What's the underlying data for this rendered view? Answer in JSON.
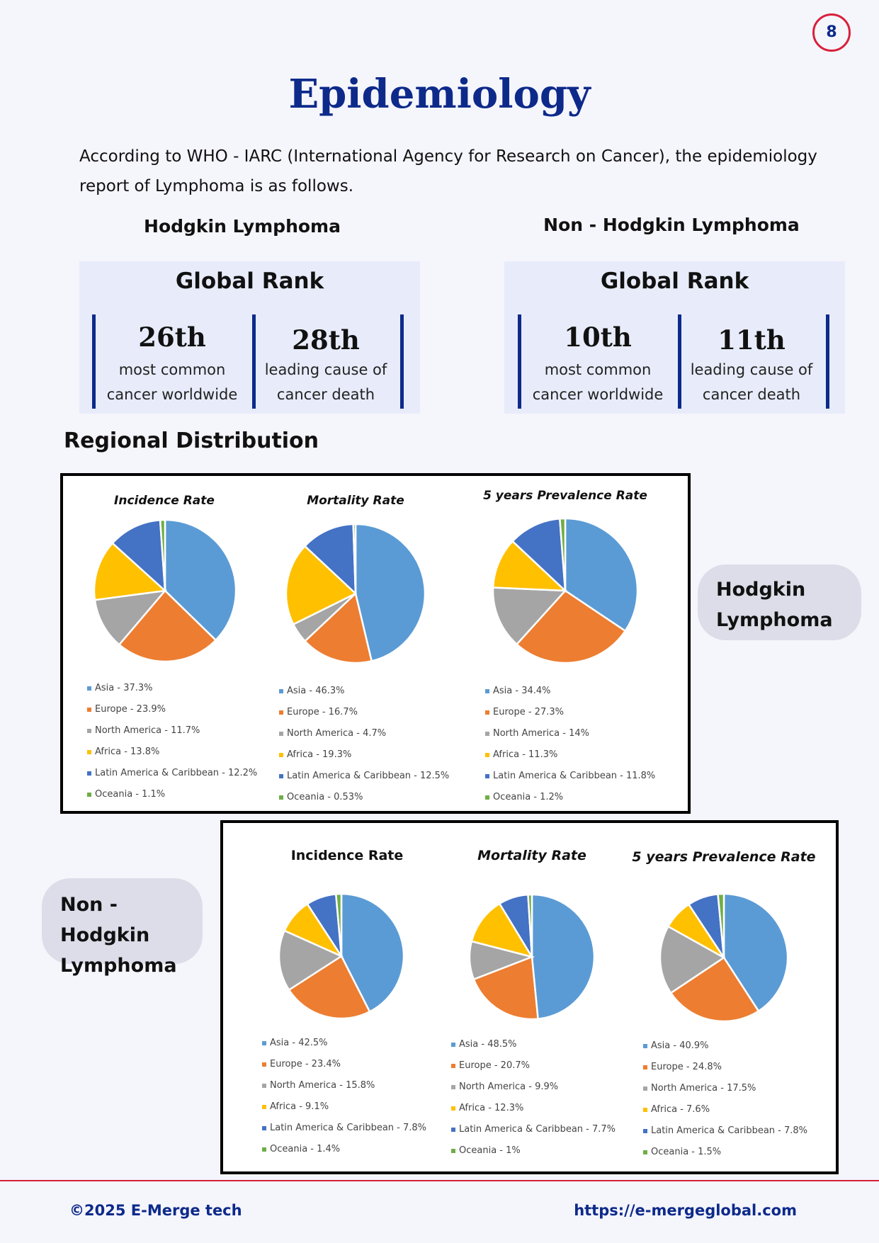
{
  "page_number": "8",
  "title": "Epidemiology",
  "intro": "According to WHO - IARC (International Agency for Research on Cancer),  the epidemiology report of Lymphoma is as follows.",
  "hodgkin": {
    "heading": "Hodgkin Lymphoma",
    "rank_title": "Global Rank",
    "incidence_rank": "26th",
    "incidence_l1": "most common",
    "incidence_l2": "cancer worldwide",
    "death_rank": "28th",
    "death_l1": "leading cause of",
    "death_l2": "cancer death",
    "pill": "Hodgkin Lymphoma"
  },
  "nhl": {
    "heading": "Non - Hodgkin Lymphoma",
    "rank_title": "Global Rank",
    "incidence_rank": "10th",
    "incidence_l1": "most common",
    "incidence_l2": "cancer worldwide",
    "death_rank": "11th",
    "death_l1": "leading cause of",
    "death_l2": "cancer death",
    "pill": "Non - Hodgkin Lymphoma"
  },
  "regional_heading": "Regional Distribution",
  "colors": {
    "Asia": "#5b9bd5",
    "Europe": "#ed7d31",
    "North America": "#a5a5a5",
    "Africa": "#ffc000",
    "Latin America & Caribbean": "#4472c4",
    "Oceania": "#70ad47",
    "accent": "#0d2a8a",
    "rule": "#d8203a"
  },
  "chart_data": [
    {
      "type": "pie",
      "group": "Hodgkin Lymphoma",
      "title": "Incidence Rate",
      "categories": [
        "Asia",
        "Europe",
        "North America",
        "Africa",
        "Latin America & Caribbean",
        "Oceania"
      ],
      "values": [
        37.3,
        23.9,
        11.7,
        13.8,
        12.2,
        1.1
      ],
      "legend": [
        "Asia - 37.3%",
        "Europe - 23.9%",
        "North America - 11.7%",
        "Africa - 13.8%",
        "Latin America & Caribbean - 12.2%",
        "Oceania - 1.1%"
      ]
    },
    {
      "type": "pie",
      "group": "Hodgkin Lymphoma",
      "title": "Mortality Rate",
      "categories": [
        "Asia",
        "Europe",
        "North America",
        "Africa",
        "Latin America & Caribbean",
        "Oceania"
      ],
      "values": [
        46.3,
        16.7,
        4.7,
        19.3,
        12.5,
        0.53
      ],
      "legend": [
        "Asia - 46.3%",
        "Europe - 16.7%",
        "North America - 4.7%",
        "Africa - 19.3%",
        "Latin America & Caribbean - 12.5%",
        "Oceania - 0.53%"
      ]
    },
    {
      "type": "pie",
      "group": "Hodgkin Lymphoma",
      "title": "5 years Prevalence Rate",
      "categories": [
        "Asia",
        "Europe",
        "North America",
        "Africa",
        "Latin America & Caribbean",
        "Oceania"
      ],
      "values": [
        34.4,
        27.3,
        14,
        11.3,
        11.8,
        1.2
      ],
      "legend": [
        "Asia - 34.4%",
        "Europe - 27.3%",
        "North America - 14%",
        "Africa - 11.3%",
        "Latin America & Caribbean - 11.8%",
        "Oceania - 1.2%"
      ]
    },
    {
      "type": "pie",
      "group": "Non - Hodgkin Lymphoma",
      "title": "Incidence Rate",
      "categories": [
        "Asia",
        "Europe",
        "North America",
        "Africa",
        "Latin America & Caribbean",
        "Oceania"
      ],
      "values": [
        42.5,
        23.4,
        15.8,
        9.1,
        7.8,
        1.4
      ],
      "legend": [
        "Asia - 42.5%",
        "Europe - 23.4%",
        "North America - 15.8%",
        "Africa - 9.1%",
        "Latin America & Caribbean - 7.8%",
        "Oceania - 1.4%"
      ]
    },
    {
      "type": "pie",
      "group": "Non - Hodgkin Lymphoma",
      "title": "Mortality Rate",
      "categories": [
        "Asia",
        "Europe",
        "North America",
        "Africa",
        "Latin America & Caribbean",
        "Oceania"
      ],
      "values": [
        48.5,
        20.7,
        9.9,
        12.3,
        7.7,
        1
      ],
      "legend": [
        "Asia - 48.5%",
        "Europe - 20.7%",
        "North America - 9.9%",
        "Africa - 12.3%",
        "Latin America & Caribbean - 7.7%",
        "Oceania - 1%"
      ]
    },
    {
      "type": "pie",
      "group": "Non - Hodgkin Lymphoma",
      "title": "5 years Prevalence Rate",
      "categories": [
        "Asia",
        "Europe",
        "North America",
        "Africa",
        "Latin America & Caribbean",
        "Oceania"
      ],
      "values": [
        40.9,
        24.8,
        17.5,
        7.6,
        7.8,
        1.5
      ],
      "legend": [
        "Asia - 40.9%",
        "Europe - 24.8%",
        "North America - 17.5%",
        "Africa - 7.6%",
        "Latin America & Caribbean - 7.8%",
        "Oceania - 1.5%"
      ]
    }
  ],
  "footer": {
    "copyright": "©2025 E-Merge tech",
    "url": "https://e-mergeglobal.com"
  }
}
